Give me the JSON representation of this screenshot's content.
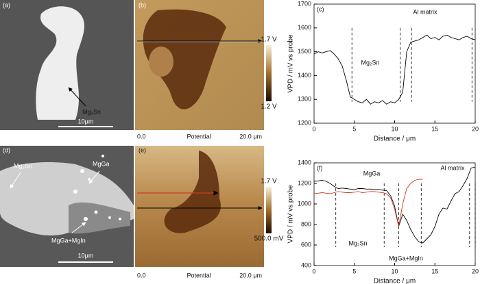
{
  "chart_data": [
    {
      "type": "line",
      "label": "(c)",
      "xlabel": "Distance / μm",
      "ylabel": "VPD / mV vs probe",
      "x": [
        0,
        0.5,
        1,
        1.5,
        2,
        2.5,
        3,
        3.5,
        4,
        4.5,
        5,
        5.5,
        6,
        6.5,
        7,
        7.5,
        8,
        8.5,
        9,
        9.5,
        10,
        10.5,
        11,
        11.5,
        12,
        12.5,
        13,
        13.5,
        14,
        14.5,
        15,
        15.5,
        16,
        16.5,
        17,
        17.5,
        18,
        18.5,
        19,
        19.5,
        20
      ],
      "series": [
        {
          "color": "#000000",
          "values": [
            1490,
            1500,
            1495,
            1500,
            1505,
            1490,
            1470,
            1440,
            1380,
            1310,
            1300,
            1290,
            1285,
            1300,
            1280,
            1290,
            1285,
            1295,
            1280,
            1290,
            1285,
            1300,
            1330,
            1500,
            1540,
            1545,
            1550,
            1560,
            1570,
            1555,
            1560,
            1550,
            1565,
            1570,
            1560,
            1555,
            1550,
            1560,
            1565,
            1555,
            1550
          ]
        }
      ],
      "xlim": [
        0,
        20
      ],
      "xticks": [
        0,
        5,
        10,
        15,
        20
      ],
      "ylim": [
        1200,
        1700
      ],
      "yticks": [
        1200,
        1300,
        1400,
        1500,
        1600,
        1700
      ],
      "dashed_x": [
        4.7,
        10.7,
        12.1,
        19.6
      ],
      "annotations": [
        "Mg₂Sn",
        "Al matrix"
      ]
    },
    {
      "type": "line",
      "label": "(f)",
      "xlabel": "Distance / μm",
      "ylabel": "VPD / mV vs probe",
      "x": [
        0,
        0.5,
        1,
        1.5,
        2,
        2.5,
        3,
        3.5,
        4,
        4.5,
        5,
        5.5,
        6,
        6.5,
        7,
        7.5,
        8,
        8.5,
        9,
        9.5,
        10,
        10.5,
        11,
        11.5,
        12,
        12.5,
        13,
        13.5,
        14,
        14.5,
        15,
        15.5,
        16,
        16.5,
        17,
        17.5,
        18,
        18.5,
        19,
        19.5,
        20
      ],
      "series": [
        {
          "color": "#000000",
          "values": [
            1220,
            1225,
            1230,
            1220,
            1200,
            1170,
            1150,
            1155,
            1150,
            1145,
            1140,
            1150,
            1150,
            1145,
            1145,
            1140,
            1140,
            1135,
            1130,
            1080,
            980,
            780,
            900,
            840,
            750,
            680,
            630,
            620,
            660,
            700,
            780,
            900,
            960,
            950,
            1030,
            1100,
            1120,
            1180,
            1250,
            1350,
            1360
          ]
        },
        {
          "color": "#d03a1e",
          "values": [
            1100,
            1105,
            1110,
            1105,
            1100,
            1110,
            1120,
            1115,
            1110,
            1110,
            1115,
            1120,
            1110,
            1115,
            1120,
            1120,
            1115,
            1110,
            1100,
            1060,
            950,
            780,
            1000,
            1150,
            1200,
            1230,
            1240,
            1240,
            null,
            null,
            null,
            null,
            null,
            null,
            null,
            null,
            null,
            null,
            null,
            null,
            null
          ]
        }
      ],
      "xlim": [
        0,
        20
      ],
      "xticks": [
        0,
        5,
        10,
        15,
        20
      ],
      "ylim": [
        400,
        1400
      ],
      "yticks": [
        400,
        600,
        800,
        1000,
        1200,
        1400
      ],
      "dashed_x": [
        2.7,
        8.7,
        10.5,
        13.3,
        19.3,
        20
      ],
      "annotations": [
        "MgGa",
        "Al matrix",
        "Mg₂Sn",
        "MgGa+MgIn"
      ]
    }
  ],
  "panels": {
    "a": {
      "label": "(a)",
      "phase": "Mg₂Sn",
      "scale": "10μm"
    },
    "b": {
      "label": "(b)",
      "bar_top": "1.7 V",
      "bar_bottom": "1.2 V",
      "x_start": "0.0",
      "x_title": "Potential",
      "x_end": "20.0 μm"
    },
    "d": {
      "label": "(d)",
      "phases": [
        "Mg₂Sn",
        "MgGa",
        "MgGa+MgIn"
      ],
      "scale": "10μm"
    },
    "e": {
      "label": "(e)",
      "bar_top": "1.7 V",
      "bar_bottom": "500.0 mV",
      "x_start": "0.0",
      "x_title": "Potential",
      "x_end": "20.0 μm"
    }
  }
}
